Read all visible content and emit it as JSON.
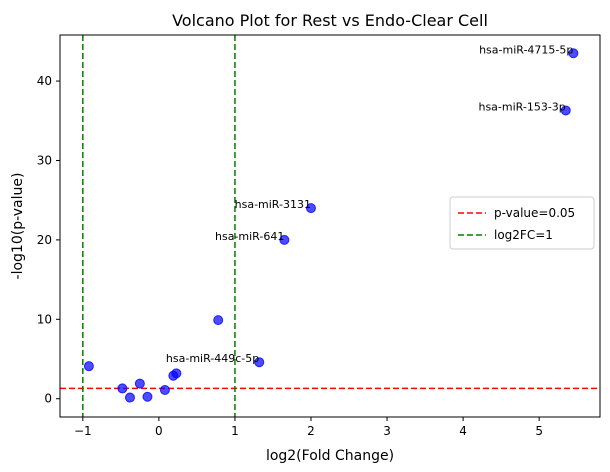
{
  "chart_data": {
    "type": "scatter",
    "title": "Volcano Plot for Rest vs Endo-Clear Cell",
    "xlabel": "log2(Fold Change)",
    "ylabel": "-log10(p-value)",
    "xlim": [
      -1.3,
      5.8
    ],
    "ylim": [
      -2.3,
      45.8
    ],
    "xticks": [
      -1,
      0,
      1,
      2,
      3,
      4,
      5
    ],
    "yticks": [
      0,
      10,
      20,
      30,
      40
    ],
    "grid": false,
    "point_color": "#0000ff",
    "points": [
      {
        "x": 5.45,
        "y": 43.5
      },
      {
        "x": 5.35,
        "y": 36.3
      },
      {
        "x": 2.0,
        "y": 24.0
      },
      {
        "x": 1.65,
        "y": 20.0
      },
      {
        "x": 0.78,
        "y": 9.9
      },
      {
        "x": 1.32,
        "y": 4.6
      },
      {
        "x": -0.92,
        "y": 4.1
      },
      {
        "x": 0.23,
        "y": 3.2
      },
      {
        "x": 0.19,
        "y": 2.9
      },
      {
        "x": -0.25,
        "y": 1.9
      },
      {
        "x": -0.48,
        "y": 1.3
      },
      {
        "x": 0.08,
        "y": 1.1
      },
      {
        "x": -0.38,
        "y": 0.15
      },
      {
        "x": -0.15,
        "y": 0.25
      }
    ],
    "annotations": [
      {
        "text": "hsa-miR-4715-5p",
        "x": 5.45,
        "y": 43.5
      },
      {
        "text": "hsa-miR-153-3p",
        "x": 5.35,
        "y": 36.3
      },
      {
        "text": "hsa-miR-3131",
        "x": 2.0,
        "y": 24.0
      },
      {
        "text": "hsa-miR-641",
        "x": 1.65,
        "y": 20.0
      },
      {
        "text": "hsa-miR-449c-5p",
        "x": 1.32,
        "y": 4.6
      }
    ],
    "hlines": [
      {
        "y": 1.3,
        "color": "#ff0000",
        "style": "dashed",
        "label": "p-value=0.05"
      }
    ],
    "vlines": [
      {
        "x": -1,
        "color": "#008000",
        "style": "dashed",
        "label": "log2FC=1"
      },
      {
        "x": 1,
        "color": "#008000",
        "style": "dashed",
        "label": "log2FC=1"
      }
    ],
    "legend": {
      "placement": "center-right",
      "entries": [
        {
          "label": "p-value=0.05",
          "color": "#ff0000"
        },
        {
          "label": "log2FC=1",
          "color": "#008000"
        }
      ]
    }
  }
}
